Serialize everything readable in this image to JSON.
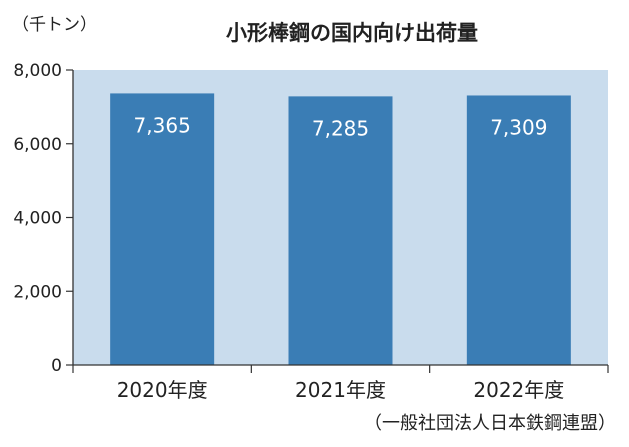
{
  "chart_data": {
    "type": "bar",
    "title": "小形棒鋼の国内向け出荷量",
    "unit_label": "（千トン）",
    "categories": [
      "2020年度",
      "2021年度",
      "2022年度"
    ],
    "values": [
      7365,
      7285,
      7309
    ],
    "data_labels": [
      "7,365",
      "7,285",
      "7,309"
    ],
    "ylim": [
      0,
      8000
    ],
    "yticks": [
      0,
      2000,
      4000,
      6000,
      8000
    ],
    "ytick_labels": [
      "0",
      "2,000",
      "4,000",
      "6,000",
      "8,000"
    ],
    "source": "（一般社団法人日本鉄鋼連盟）",
    "grid": false,
    "legend": "none",
    "colors": {
      "plot_bg": "#c9dced",
      "bar": "#3a7db5",
      "axis": "#333333"
    }
  }
}
